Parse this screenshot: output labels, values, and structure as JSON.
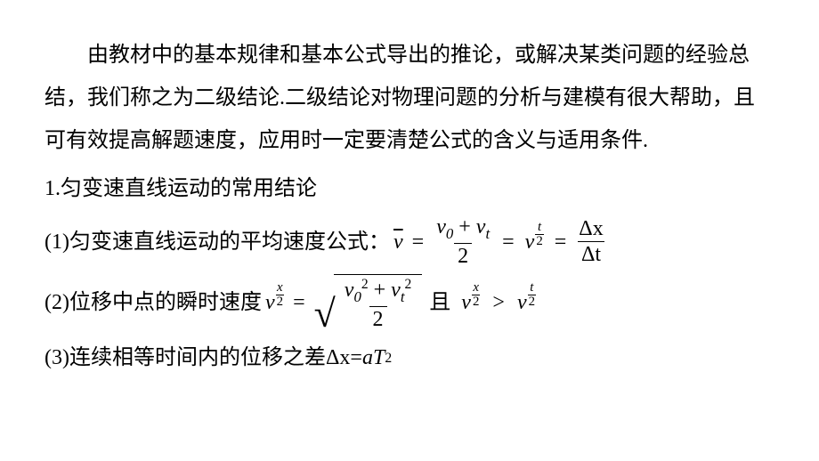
{
  "background_color": "#ffffff",
  "text_color": "#000000",
  "font_family_cjk": "SimSun",
  "font_family_math": "Times New Roman",
  "base_fontsize_pt": 18,
  "paragraph": "由教材中的基本规律和基本公式导出的推论，或解决某类问题的经验总结，我们称之为二级结论.二级结论对物理问题的分析与建模有很大帮助，且可有效提高解题速度，应用时一定要清楚公式的含义与适用条件.",
  "section1": {
    "title": "1.匀变速直线运动的常用结论",
    "items": {
      "i1": {
        "label": "(1)匀变速直线运动的平均速度公式：",
        "vbar": "v",
        "eq": "=",
        "frac1_num_a": "v",
        "frac1_num_sub_a": "0",
        "frac1_num_plus": " + ",
        "frac1_num_b": "v",
        "frac1_num_sub_b": "t",
        "frac1_den": "2",
        "mid_v": "v",
        "mid_sub_num": "t",
        "mid_sub_den": "2",
        "frac2_num": "Δx",
        "frac2_den": "Δt"
      },
      "i2": {
        "label": "(2)位移中点的瞬时速度",
        "lhs_v": "v",
        "lhs_sub_num": "x",
        "lhs_sub_den": "2",
        "eq": "=",
        "sqrt_num_a": "v",
        "sqrt_num_sub_a": "0",
        "sqrt_num_sup_a": "2",
        "sqrt_num_plus": " + ",
        "sqrt_num_b": "v",
        "sqrt_num_sub_b": "t",
        "sqrt_num_sup_b": "2",
        "sqrt_den": "2",
        "and_text": "且",
        "cmp_a_v": "v",
        "cmp_a_sub_num": "x",
        "cmp_a_sub_den": "2",
        "gt": ">",
        "cmp_b_v": "v",
        "cmp_b_sub_num": "t",
        "cmp_b_sub_den": "2"
      },
      "i3": {
        "label": "(3)连续相等时间内的位移之差",
        "dx": "Δx",
        "eq": " = ",
        "a": "a",
        "T": "T",
        "sq": "2"
      }
    }
  }
}
